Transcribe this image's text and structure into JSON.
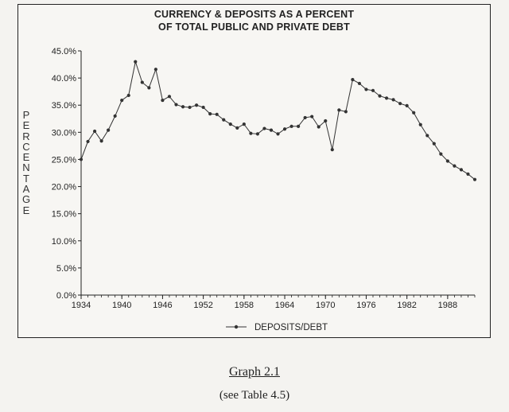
{
  "chart_data": {
    "type": "line",
    "title_lines": [
      "CURRENCY & DEPOSITS AS A PERCENT",
      "OF TOTAL PUBLIC AND PRIVATE DEBT"
    ],
    "ylabel": "PERCENTAGE",
    "xlabel": "",
    "x_ticks": [
      "1934",
      "1940",
      "1946",
      "1952",
      "1958",
      "1964",
      "1970",
      "1976",
      "1982",
      "1988"
    ],
    "y_ticks": [
      "0.0%",
      "5.0%",
      "10.0%",
      "15.0%",
      "20.0%",
      "25.0%",
      "30.0%",
      "35.0%",
      "40.0%",
      "45.0%"
    ],
    "xlim": [
      1934,
      1992
    ],
    "ylim": [
      0,
      45
    ],
    "grid": false,
    "legend_position": "bottom",
    "series": [
      {
        "name": "DEPOSITS/DEBT",
        "color": "#333333",
        "x": [
          1934,
          1935,
          1936,
          1937,
          1938,
          1939,
          1940,
          1941,
          1942,
          1943,
          1944,
          1945,
          1946,
          1947,
          1948,
          1949,
          1950,
          1951,
          1952,
          1953,
          1954,
          1955,
          1956,
          1957,
          1958,
          1959,
          1960,
          1961,
          1962,
          1963,
          1964,
          1965,
          1966,
          1967,
          1968,
          1969,
          1970,
          1971,
          1972,
          1973,
          1974,
          1975,
          1976,
          1977,
          1978,
          1979,
          1980,
          1981,
          1982,
          1983,
          1984,
          1985,
          1986,
          1987,
          1988,
          1989,
          1990,
          1991,
          1992
        ],
        "y": [
          25.0,
          28.3,
          30.2,
          28.4,
          30.4,
          33.0,
          35.9,
          36.8,
          43.0,
          39.2,
          38.2,
          41.6,
          35.9,
          36.6,
          35.1,
          34.7,
          34.6,
          35.0,
          34.6,
          33.4,
          33.3,
          32.3,
          31.5,
          30.8,
          31.5,
          29.8,
          29.7,
          30.7,
          30.4,
          29.7,
          30.6,
          31.1,
          31.1,
          32.7,
          32.9,
          31.0,
          32.1,
          26.8,
          34.1,
          33.8,
          39.7,
          39.0,
          37.9,
          37.7,
          36.7,
          36.3,
          36.0,
          35.3,
          34.9,
          33.6,
          31.4,
          29.4,
          27.9,
          26.0,
          24.7,
          23.8,
          23.1,
          22.3,
          21.3
        ]
      }
    ]
  },
  "caption": "Graph 2.1",
  "subcaption": "(see Table 4.5)"
}
